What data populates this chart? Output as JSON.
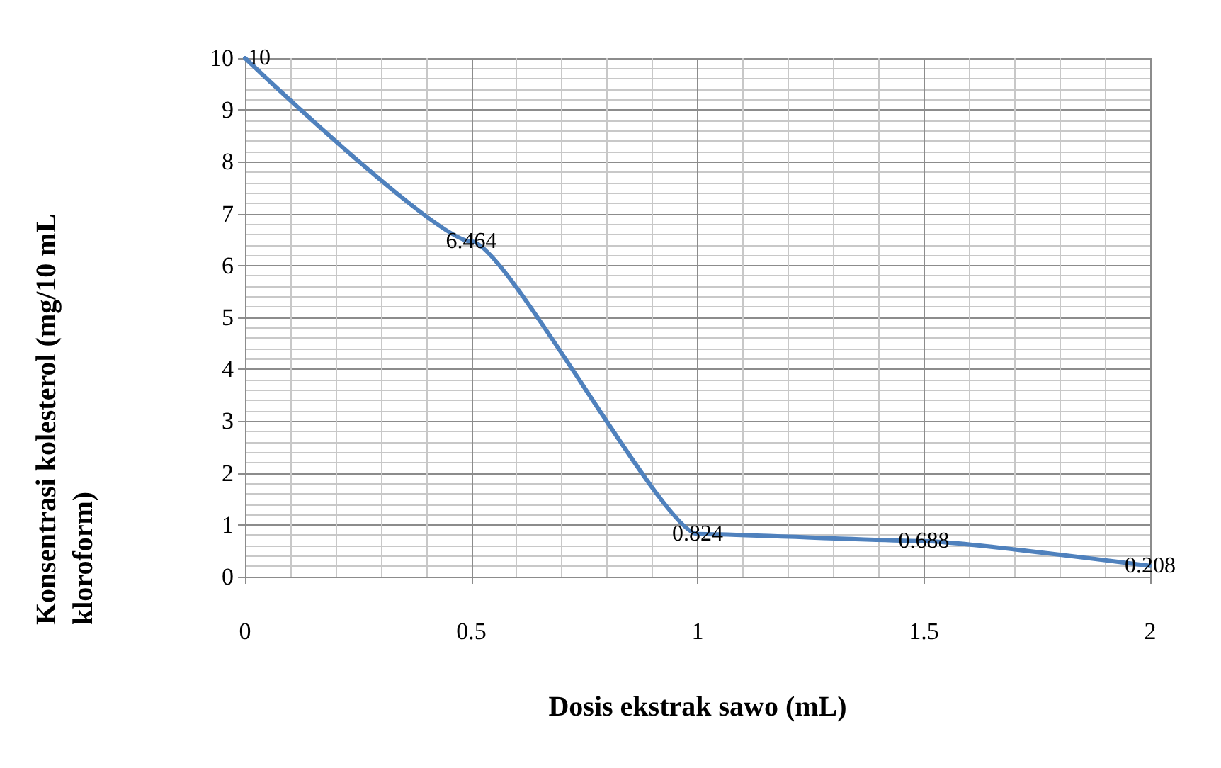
{
  "chart_data": {
    "type": "line",
    "xlabel": "Dosis ekstrak sawo (mL)",
    "ylabel": "Konsentrasi kolesterol (mg/10 mL kloroform)",
    "x": [
      0,
      0.5,
      1,
      1.5,
      2
    ],
    "series": [
      {
        "color": "#4f81bd",
        "values": [
          10,
          6.464,
          0.824,
          0.688,
          0.208
        ]
      }
    ],
    "xlim": [
      0,
      2
    ],
    "xticks": [
      0,
      0.5,
      1,
      1.5,
      2
    ],
    "ylim": [
      0,
      10
    ],
    "yticks": [
      0,
      1,
      2,
      3,
      4,
      5,
      6,
      7,
      8,
      9,
      10
    ],
    "grid": true,
    "data_labels": true,
    "marker": "none",
    "line_style": "solid"
  }
}
